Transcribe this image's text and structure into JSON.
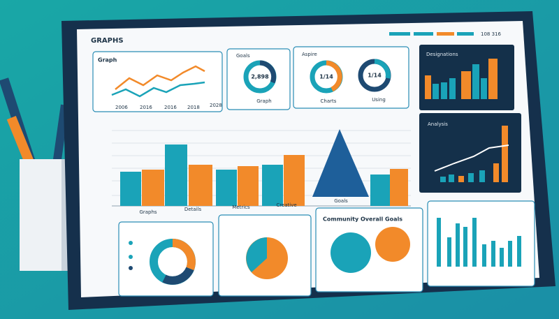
{
  "header": {
    "title": "GRAPHS",
    "code": "108 316"
  },
  "panels": {
    "line": {
      "title": "Graph",
      "labels": [
        "2006",
        "2016",
        "2016",
        "2018",
        "2028"
      ]
    },
    "donut": {
      "title": "Goals",
      "value": "2,898",
      "caption": "Graph"
    },
    "donuts": {
      "title": "Aspire",
      "values": [
        "1/14",
        "1/14"
      ],
      "captions": [
        "Charts",
        "Using"
      ]
    },
    "dark_bars": {
      "title": "Designations"
    },
    "dark_trend": {
      "title": "Analysis"
    },
    "main": {
      "labels": [
        "Graphs",
        "Details",
        "Metrics",
        "Creative",
        "Goals"
      ]
    },
    "circles": {
      "title": "Community Overall Goals"
    }
  }
}
